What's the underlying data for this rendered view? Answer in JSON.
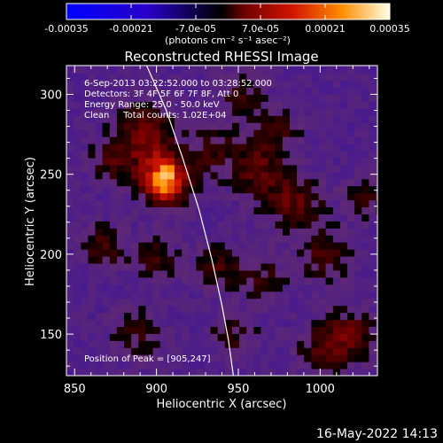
{
  "chart_data": {
    "type": "heatmap",
    "title": "Reconstructed RHESSI Image",
    "xlabel": "Heliocentric X (arcsec)",
    "ylabel": "Heliocentric Y (arcsec)",
    "xlim": [
      845,
      1035
    ],
    "ylim": [
      124,
      318
    ],
    "x_ticks": [
      850,
      900,
      950,
      1000
    ],
    "y_ticks": [
      150,
      200,
      250,
      300
    ],
    "colorbar": {
      "units": "(photons cm⁻² s⁻¹ asec⁻²)",
      "ticks": [
        "-0.00035",
        "-0.00021",
        "-7.0e-05",
        "7.0e-05",
        "0.00021",
        "0.00035"
      ],
      "range": [
        -0.00035,
        0.00035
      ]
    },
    "annotations": [
      "6-Sep-2013 03:22:52.000 to 03:28:52.000",
      "Detectors: 3F 4F 5F 6F 7F 8F, Att 0",
      "Energy Range: 25.0 - 50.0 keV",
      "Clean     Total counts: 1.02E+04"
    ],
    "peak_label": "Position of Peak = [905,247]",
    "peak": [
      905,
      247
    ],
    "limb": [
      [
        894,
        318
      ],
      [
        906,
        290
      ],
      [
        916,
        260
      ],
      [
        926,
        228
      ],
      [
        934,
        196
      ],
      [
        940,
        168
      ],
      [
        944,
        146
      ],
      [
        947,
        124
      ]
    ],
    "sources": [
      {
        "x": 905,
        "y": 247,
        "peak": 1.0,
        "sigma": 11
      },
      {
        "x": 893,
        "y": 277,
        "peak": 0.55,
        "sigma": 12
      },
      {
        "x": 874,
        "y": 258,
        "peak": 0.35,
        "sigma": 10
      },
      {
        "x": 867,
        "y": 205,
        "peak": 0.4,
        "sigma": 9
      },
      {
        "x": 900,
        "y": 198,
        "peak": 0.35,
        "sigma": 10
      },
      {
        "x": 935,
        "y": 265,
        "peak": 0.3,
        "sigma": 12
      },
      {
        "x": 963,
        "y": 252,
        "peak": 0.4,
        "sigma": 12
      },
      {
        "x": 985,
        "y": 232,
        "peak": 0.45,
        "sigma": 12
      },
      {
        "x": 972,
        "y": 277,
        "peak": 0.35,
        "sigma": 10
      },
      {
        "x": 952,
        "y": 300,
        "peak": 0.3,
        "sigma": 10
      },
      {
        "x": 938,
        "y": 192,
        "peak": 0.35,
        "sigma": 10
      },
      {
        "x": 965,
        "y": 185,
        "peak": 0.3,
        "sigma": 10
      },
      {
        "x": 1003,
        "y": 200,
        "peak": 0.35,
        "sigma": 11
      },
      {
        "x": 1018,
        "y": 150,
        "peak": 0.5,
        "sigma": 11
      },
      {
        "x": 1028,
        "y": 236,
        "peak": 0.3,
        "sigma": 9
      },
      {
        "x": 888,
        "y": 150,
        "peak": 0.3,
        "sigma": 11
      },
      {
        "x": 947,
        "y": 150,
        "peak": 0.3,
        "sigma": 10
      },
      {
        "x": 1000,
        "y": 140,
        "peak": 0.35,
        "sigma": 10
      }
    ]
  },
  "footer": {
    "date": "16-May-2022 14:13"
  }
}
